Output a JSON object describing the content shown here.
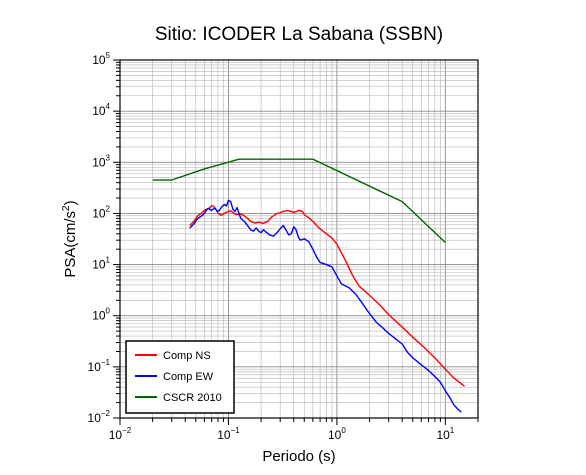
{
  "chart_data": {
    "type": "line",
    "title": "Sitio: ICODER La Sabana (SSBN)",
    "xlabel": "Periodo (s)",
    "ylabel_main": "PSA(cm/s",
    "ylabel_sup": "2",
    "ylabel_close": ")",
    "xscale": "log",
    "yscale": "log",
    "xlim": [
      0.01,
      20
    ],
    "ylim": [
      0.01,
      100000
    ],
    "grid": true,
    "legend_placement": "bottom-left",
    "x_ticks": [
      {
        "value": 0.01,
        "base": "10",
        "exp": "−2"
      },
      {
        "value": 0.1,
        "base": "10",
        "exp": "−1"
      },
      {
        "value": 1,
        "base": "10",
        "exp": "0"
      },
      {
        "value": 10,
        "base": "10",
        "exp": "1"
      }
    ],
    "y_ticks": [
      {
        "value": 0.01,
        "base": "10",
        "exp": "−2"
      },
      {
        "value": 0.1,
        "base": "10",
        "exp": "−1"
      },
      {
        "value": 1,
        "base": "10",
        "exp": "0"
      },
      {
        "value": 10,
        "base": "10",
        "exp": "1"
      },
      {
        "value": 100,
        "base": "10",
        "exp": "2"
      },
      {
        "value": 1000,
        "base": "10",
        "exp": "3"
      },
      {
        "value": 10000,
        "base": "10",
        "exp": "4"
      },
      {
        "value": 100000,
        "base": "10",
        "exp": "5"
      }
    ],
    "series": [
      {
        "name": "Comp NS",
        "color": "#ff0000",
        "points": [
          [
            0.044,
            58
          ],
          [
            0.048,
            70
          ],
          [
            0.052,
            90
          ],
          [
            0.056,
            100
          ],
          [
            0.06,
            115
          ],
          [
            0.063,
            122
          ],
          [
            0.067,
            128
          ],
          [
            0.07,
            142
          ],
          [
            0.073,
            138
          ],
          [
            0.077,
            118
          ],
          [
            0.08,
            102
          ],
          [
            0.085,
            92
          ],
          [
            0.09,
            97
          ],
          [
            0.095,
            105
          ],
          [
            0.1,
            110
          ],
          [
            0.105,
            112
          ],
          [
            0.11,
            105
          ],
          [
            0.115,
            97
          ],
          [
            0.12,
            95
          ],
          [
            0.13,
            98
          ],
          [
            0.14,
            90
          ],
          [
            0.15,
            80
          ],
          [
            0.16,
            70
          ],
          [
            0.175,
            65
          ],
          [
            0.19,
            67
          ],
          [
            0.21,
            64
          ],
          [
            0.23,
            70
          ],
          [
            0.25,
            85
          ],
          [
            0.28,
            100
          ],
          [
            0.3,
            103
          ],
          [
            0.32,
            110
          ],
          [
            0.35,
            113
          ],
          [
            0.38,
            110
          ],
          [
            0.4,
            105
          ],
          [
            0.42,
            108
          ],
          [
            0.45,
            115
          ],
          [
            0.48,
            110
          ],
          [
            0.5,
            95
          ],
          [
            0.55,
            82
          ],
          [
            0.6,
            70
          ],
          [
            0.65,
            58
          ],
          [
            0.7,
            50
          ],
          [
            0.8,
            40
          ],
          [
            0.9,
            33
          ],
          [
            1.0,
            25
          ],
          [
            1.2,
            12
          ],
          [
            1.4,
            6
          ],
          [
            1.6,
            3.8
          ],
          [
            2.0,
            2.5
          ],
          [
            2.5,
            1.6
          ],
          [
            3.0,
            1.05
          ],
          [
            4.0,
            0.6
          ],
          [
            5.0,
            0.38
          ],
          [
            6.0,
            0.27
          ],
          [
            8.0,
            0.15
          ],
          [
            10.0,
            0.09
          ],
          [
            12.0,
            0.06
          ],
          [
            15.0,
            0.042
          ]
        ]
      },
      {
        "name": "Comp EW",
        "color": "#0000ff",
        "points": [
          [
            0.044,
            52
          ],
          [
            0.048,
            62
          ],
          [
            0.052,
            80
          ],
          [
            0.056,
            88
          ],
          [
            0.06,
            100
          ],
          [
            0.063,
            118
          ],
          [
            0.066,
            125
          ],
          [
            0.069,
            115
          ],
          [
            0.072,
            120
          ],
          [
            0.075,
            128
          ],
          [
            0.078,
            113
          ],
          [
            0.082,
            112
          ],
          [
            0.087,
            135
          ],
          [
            0.092,
            150
          ],
          [
            0.096,
            140
          ],
          [
            0.1,
            180
          ],
          [
            0.105,
            170
          ],
          [
            0.11,
            120
          ],
          [
            0.115,
            110
          ],
          [
            0.12,
            130
          ],
          [
            0.125,
            100
          ],
          [
            0.13,
            80
          ],
          [
            0.14,
            70
          ],
          [
            0.15,
            58
          ],
          [
            0.16,
            48
          ],
          [
            0.17,
            45
          ],
          [
            0.18,
            52
          ],
          [
            0.19,
            45
          ],
          [
            0.2,
            42
          ],
          [
            0.21,
            48
          ],
          [
            0.22,
            44
          ],
          [
            0.24,
            38
          ],
          [
            0.26,
            36
          ],
          [
            0.28,
            42
          ],
          [
            0.3,
            50
          ],
          [
            0.32,
            58
          ],
          [
            0.34,
            47
          ],
          [
            0.36,
            38
          ],
          [
            0.38,
            40
          ],
          [
            0.4,
            55
          ],
          [
            0.42,
            48
          ],
          [
            0.44,
            35
          ],
          [
            0.46,
            30
          ],
          [
            0.5,
            32
          ],
          [
            0.55,
            28
          ],
          [
            0.6,
            20
          ],
          [
            0.65,
            14
          ],
          [
            0.7,
            11
          ],
          [
            0.8,
            10
          ],
          [
            0.9,
            9
          ],
          [
            1.0,
            6
          ],
          [
            1.1,
            4.2
          ],
          [
            1.3,
            3.5
          ],
          [
            1.5,
            2.6
          ],
          [
            1.7,
            1.8
          ],
          [
            2.0,
            1.1
          ],
          [
            2.3,
            0.75
          ],
          [
            2.6,
            0.6
          ],
          [
            3.0,
            0.45
          ],
          [
            3.5,
            0.35
          ],
          [
            4.0,
            0.28
          ],
          [
            4.5,
            0.19
          ],
          [
            5.0,
            0.15
          ],
          [
            6.0,
            0.11
          ],
          [
            7.0,
            0.085
          ],
          [
            8.0,
            0.065
          ],
          [
            9.0,
            0.05
          ],
          [
            10.0,
            0.034
          ],
          [
            11.0,
            0.025
          ],
          [
            12.0,
            0.018
          ],
          [
            13.0,
            0.015
          ],
          [
            14.0,
            0.013
          ]
        ]
      },
      {
        "name": "CSCR 2010",
        "color": "#006400",
        "points": [
          [
            0.02,
            450
          ],
          [
            0.03,
            450
          ],
          [
            0.06,
            740
          ],
          [
            0.125,
            1150
          ],
          [
            0.6,
            1150
          ],
          [
            4.0,
            170
          ],
          [
            10.0,
            27
          ]
        ]
      }
    ]
  }
}
